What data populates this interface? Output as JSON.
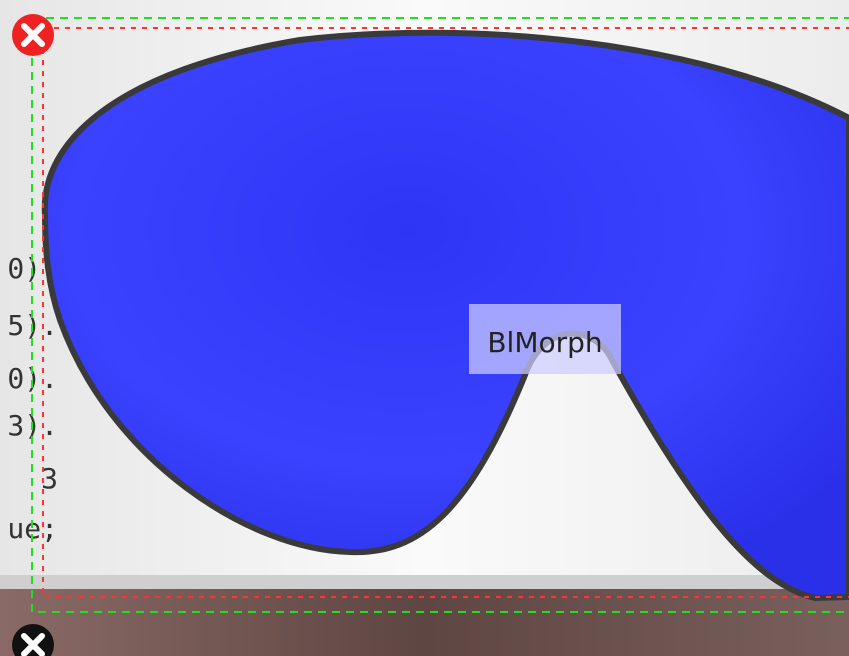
{
  "label": "BlMorph",
  "code_lines": [
    "0).",
    "5).",
    "0).",
    "3).",
    "3",
    "ue;"
  ]
}
